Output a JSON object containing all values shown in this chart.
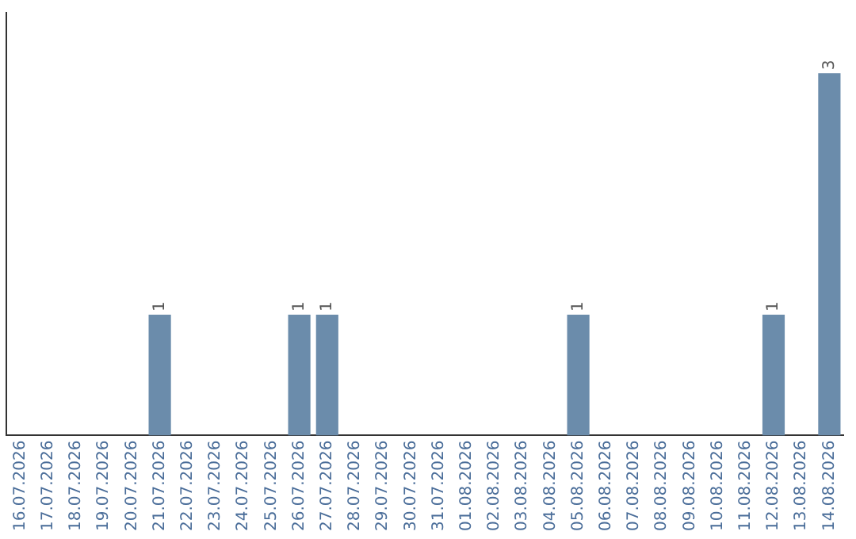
{
  "chart_data": {
    "type": "bar",
    "categories": [
      "16.07.2026",
      "17.07.2026",
      "18.07.2026",
      "19.07.2026",
      "20.07.2026",
      "21.07.2026",
      "22.07.2026",
      "23.07.2026",
      "24.07.2026",
      "25.07.2026",
      "26.07.2026",
      "27.07.2026",
      "28.07.2026",
      "29.07.2026",
      "30.07.2026",
      "31.07.2026",
      "01.08.2026",
      "02.08.2026",
      "03.08.2026",
      "04.08.2026",
      "05.08.2026",
      "06.08.2026",
      "07.08.2026",
      "08.08.2026",
      "09.08.2026",
      "10.08.2026",
      "11.08.2026",
      "12.08.2026",
      "13.08.2026",
      "14.08.2026"
    ],
    "values": [
      0,
      0,
      0,
      0,
      0,
      1,
      0,
      0,
      0,
      0,
      1,
      1,
      0,
      0,
      0,
      0,
      0,
      0,
      0,
      0,
      1,
      0,
      0,
      0,
      0,
      0,
      0,
      1,
      0,
      3
    ],
    "value_labels": [
      null,
      null,
      null,
      null,
      null,
      "1",
      null,
      null,
      null,
      null,
      "1",
      "1",
      null,
      null,
      null,
      null,
      null,
      null,
      null,
      null,
      "1",
      null,
      null,
      null,
      null,
      null,
      null,
      "1",
      null,
      "3"
    ],
    "color": "#6b8cab",
    "grid": false,
    "legend": false,
    "tick_labels": "x"
  }
}
